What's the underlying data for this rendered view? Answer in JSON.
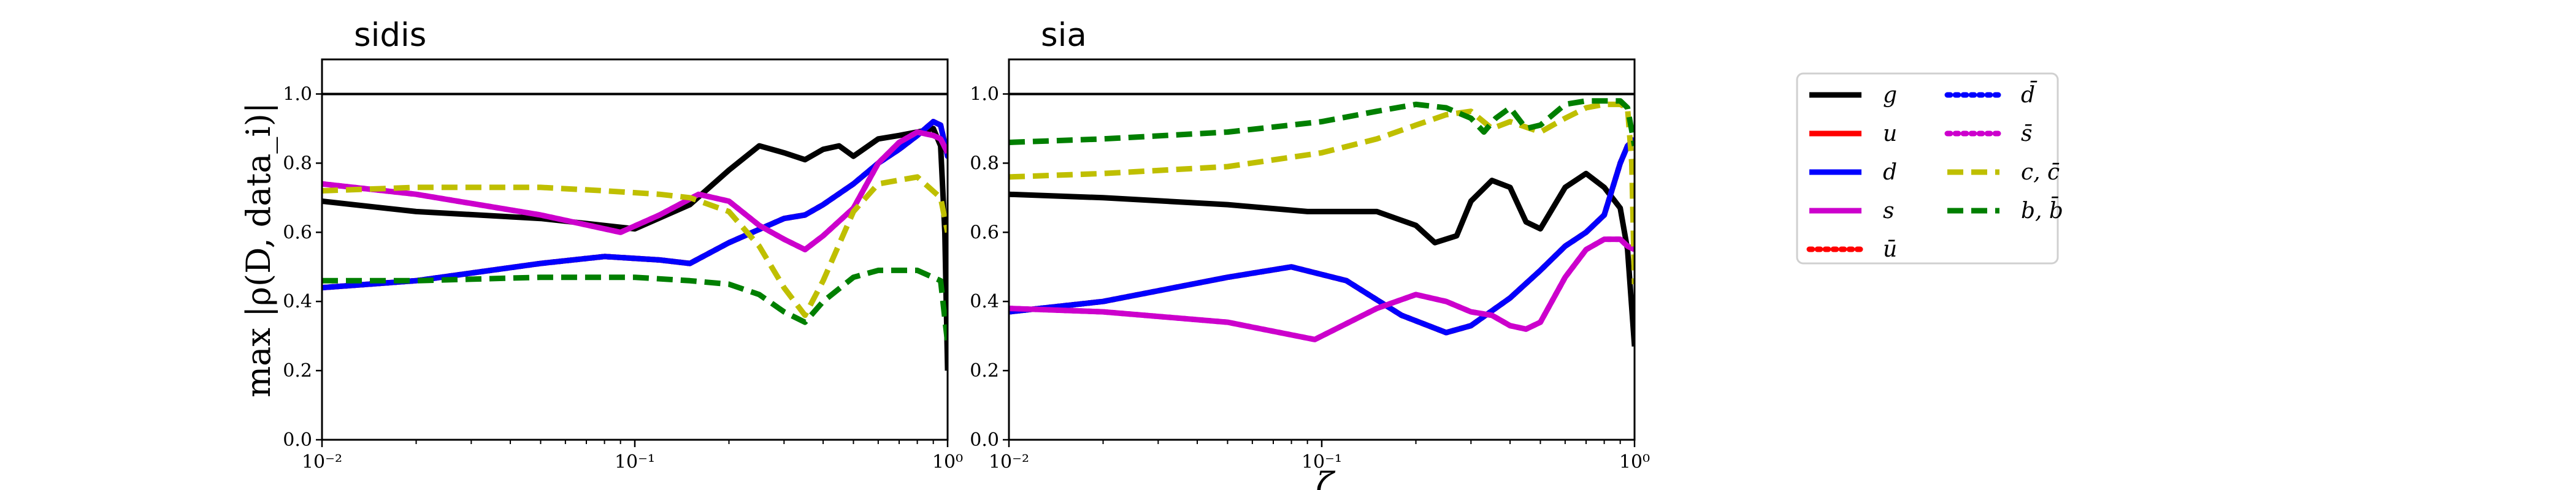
{
  "chart_data": {
    "type": "line",
    "ylabel": "max |ρ(D, data_i)|",
    "xlabel": "ζ",
    "x_scale": "log",
    "xlim": [
      0.01,
      1
    ],
    "ylim": [
      0,
      1.1
    ],
    "x_ticks": [
      {
        "value": 0.01,
        "label": "10⁻²"
      },
      {
        "value": 0.1,
        "label": "10⁻¹"
      },
      {
        "value": 1,
        "label": "10⁰"
      }
    ],
    "y_ticks": [
      {
        "value": 0.0,
        "label": "0.0"
      },
      {
        "value": 0.2,
        "label": "0.2"
      },
      {
        "value": 0.4,
        "label": "0.4"
      },
      {
        "value": 0.6,
        "label": "0.6"
      },
      {
        "value": 0.8,
        "label": "0.8"
      },
      {
        "value": 1.0,
        "label": "1.0"
      }
    ],
    "reference_line": 1.0,
    "legend": {
      "placement": "right of panels",
      "entries": [
        {
          "label": "g",
          "color": "#000000",
          "dash": "solid"
        },
        {
          "label": "u",
          "color": "#ff0000",
          "dash": "solid"
        },
        {
          "label": "d",
          "color": "#0000ff",
          "dash": "solid"
        },
        {
          "label": "s",
          "color": "#cc00cc",
          "dash": "solid"
        },
        {
          "label": "ū",
          "color": "#ff0000",
          "dash": "dotted"
        },
        {
          "label": "d̄",
          "color": "#0000ff",
          "dash": "dotted"
        },
        {
          "label": "s̄",
          "color": "#cc00cc",
          "dash": "dotted"
        },
        {
          "label": "c, c̄",
          "color": "#bfbf00",
          "dash": "dashed"
        },
        {
          "label": "b, b̄",
          "color": "#007f00",
          "dash": "dashed"
        }
      ]
    },
    "panels": [
      {
        "title": "sidis",
        "series": [
          {
            "name": "g",
            "color": "#000000",
            "dash": "solid",
            "x": [
              0.01,
              0.02,
              0.05,
              0.1,
              0.15,
              0.2,
              0.25,
              0.3,
              0.35,
              0.4,
              0.45,
              0.5,
              0.6,
              0.7,
              0.8,
              0.9,
              0.95,
              0.98,
              1.0
            ],
            "y": [
              0.69,
              0.66,
              0.64,
              0.61,
              0.68,
              0.78,
              0.85,
              0.83,
              0.81,
              0.84,
              0.85,
              0.82,
              0.87,
              0.88,
              0.89,
              0.9,
              0.85,
              0.6,
              0.2
            ]
          },
          {
            "name": "u",
            "color": "#ff0000",
            "dash": "solid",
            "x": [
              0.01,
              0.02,
              0.05,
              0.08,
              0.12,
              0.15,
              0.2,
              0.3,
              0.35,
              0.4,
              0.5,
              0.6,
              0.7,
              0.8,
              0.9,
              0.95,
              1.0
            ],
            "y": [
              0.44,
              0.46,
              0.51,
              0.53,
              0.52,
              0.51,
              0.57,
              0.64,
              0.65,
              0.68,
              0.74,
              0.8,
              0.84,
              0.88,
              0.92,
              0.91,
              0.82
            ]
          },
          {
            "name": "d",
            "color": "#0000ff",
            "dash": "solid",
            "x": [
              0.01,
              0.02,
              0.05,
              0.08,
              0.12,
              0.15,
              0.2,
              0.3,
              0.35,
              0.4,
              0.5,
              0.6,
              0.7,
              0.8,
              0.9,
              0.95,
              1.0
            ],
            "y": [
              0.44,
              0.46,
              0.51,
              0.53,
              0.52,
              0.51,
              0.57,
              0.64,
              0.65,
              0.68,
              0.74,
              0.8,
              0.84,
              0.88,
              0.92,
              0.91,
              0.82
            ]
          },
          {
            "name": "ū",
            "color": "#ff0000",
            "dash": "dotted",
            "x": [
              0.01,
              0.02,
              0.05,
              0.08,
              0.12,
              0.15,
              0.2,
              0.3,
              0.35,
              0.4,
              0.5,
              0.6,
              0.7,
              0.8,
              0.9,
              0.95,
              1.0
            ],
            "y": [
              0.44,
              0.46,
              0.51,
              0.53,
              0.52,
              0.51,
              0.57,
              0.64,
              0.65,
              0.68,
              0.74,
              0.8,
              0.84,
              0.88,
              0.92,
              0.91,
              0.82
            ]
          },
          {
            "name": "d̄",
            "color": "#0000ff",
            "dash": "dotted",
            "x": [
              0.01,
              0.02,
              0.05,
              0.08,
              0.12,
              0.15,
              0.2,
              0.3,
              0.35,
              0.4,
              0.5,
              0.6,
              0.7,
              0.8,
              0.9,
              0.95,
              1.0
            ],
            "y": [
              0.44,
              0.46,
              0.51,
              0.53,
              0.52,
              0.51,
              0.57,
              0.64,
              0.65,
              0.68,
              0.74,
              0.8,
              0.84,
              0.88,
              0.92,
              0.91,
              0.82
            ]
          },
          {
            "name": "s",
            "color": "#cc00cc",
            "dash": "solid",
            "x": [
              0.01,
              0.02,
              0.05,
              0.09,
              0.12,
              0.16,
              0.2,
              0.25,
              0.3,
              0.35,
              0.4,
              0.5,
              0.6,
              0.7,
              0.8,
              0.9,
              0.95,
              1.0
            ],
            "y": [
              0.74,
              0.71,
              0.65,
              0.6,
              0.65,
              0.71,
              0.69,
              0.62,
              0.58,
              0.55,
              0.59,
              0.67,
              0.8,
              0.86,
              0.89,
              0.88,
              0.87,
              0.83
            ]
          },
          {
            "name": "s̄",
            "color": "#cc00cc",
            "dash": "dotted",
            "x": [
              0.01,
              0.02,
              0.05,
              0.09,
              0.12,
              0.16,
              0.2,
              0.25,
              0.3,
              0.35,
              0.4,
              0.5,
              0.6,
              0.7,
              0.8,
              0.9,
              0.95,
              1.0
            ],
            "y": [
              0.74,
              0.71,
              0.65,
              0.6,
              0.65,
              0.71,
              0.69,
              0.62,
              0.58,
              0.55,
              0.59,
              0.67,
              0.8,
              0.86,
              0.89,
              0.88,
              0.87,
              0.83
            ]
          },
          {
            "name": "c, c̄",
            "color": "#bfbf00",
            "dash": "dashed",
            "x": [
              0.01,
              0.02,
              0.05,
              0.08,
              0.12,
              0.15,
              0.2,
              0.25,
              0.3,
              0.35,
              0.4,
              0.5,
              0.6,
              0.8,
              0.95,
              1.0
            ],
            "y": [
              0.72,
              0.73,
              0.73,
              0.72,
              0.71,
              0.7,
              0.66,
              0.56,
              0.44,
              0.36,
              0.46,
              0.66,
              0.74,
              0.76,
              0.7,
              0.6
            ]
          },
          {
            "name": "b, b̄",
            "color": "#007f00",
            "dash": "dashed",
            "x": [
              0.01,
              0.02,
              0.05,
              0.1,
              0.15,
              0.2,
              0.25,
              0.3,
              0.35,
              0.4,
              0.5,
              0.6,
              0.8,
              0.95,
              0.98,
              1.0
            ],
            "y": [
              0.46,
              0.46,
              0.47,
              0.47,
              0.46,
              0.45,
              0.42,
              0.37,
              0.34,
              0.4,
              0.47,
              0.49,
              0.49,
              0.46,
              0.35,
              0.28
            ]
          }
        ]
      },
      {
        "title": "sia",
        "series": [
          {
            "name": "g",
            "color": "#000000",
            "dash": "solid",
            "x": [
              0.01,
              0.02,
              0.05,
              0.09,
              0.15,
              0.2,
              0.23,
              0.27,
              0.3,
              0.35,
              0.4,
              0.45,
              0.5,
              0.6,
              0.7,
              0.8,
              0.9,
              0.95,
              1.0
            ],
            "y": [
              0.71,
              0.7,
              0.68,
              0.66,
              0.66,
              0.62,
              0.57,
              0.59,
              0.69,
              0.75,
              0.73,
              0.63,
              0.61,
              0.73,
              0.77,
              0.73,
              0.67,
              0.55,
              0.27
            ]
          },
          {
            "name": "u",
            "color": "#ff0000",
            "dash": "solid",
            "x": [
              0.01,
              0.02,
              0.05,
              0.08,
              0.12,
              0.18,
              0.25,
              0.3,
              0.4,
              0.5,
              0.6,
              0.7,
              0.8,
              0.9,
              0.95,
              1.0
            ],
            "y": [
              0.37,
              0.4,
              0.47,
              0.5,
              0.46,
              0.36,
              0.31,
              0.33,
              0.41,
              0.49,
              0.56,
              0.6,
              0.65,
              0.8,
              0.85,
              0.87
            ]
          },
          {
            "name": "d",
            "color": "#0000ff",
            "dash": "solid",
            "x": [
              0.01,
              0.02,
              0.05,
              0.08,
              0.12,
              0.18,
              0.25,
              0.3,
              0.4,
              0.5,
              0.6,
              0.7,
              0.8,
              0.9,
              0.95,
              1.0
            ],
            "y": [
              0.37,
              0.4,
              0.47,
              0.5,
              0.46,
              0.36,
              0.31,
              0.33,
              0.41,
              0.49,
              0.56,
              0.6,
              0.65,
              0.8,
              0.85,
              0.87
            ]
          },
          {
            "name": "ū",
            "color": "#ff0000",
            "dash": "dotted",
            "x": [
              0.01,
              0.02,
              0.05,
              0.08,
              0.12,
              0.18,
              0.25,
              0.3,
              0.4,
              0.5,
              0.6,
              0.7,
              0.8,
              0.9,
              0.95,
              1.0
            ],
            "y": [
              0.37,
              0.4,
              0.47,
              0.5,
              0.46,
              0.36,
              0.31,
              0.33,
              0.41,
              0.49,
              0.56,
              0.6,
              0.65,
              0.8,
              0.85,
              0.87
            ]
          },
          {
            "name": "d̄",
            "color": "#0000ff",
            "dash": "dotted",
            "x": [
              0.01,
              0.02,
              0.05,
              0.08,
              0.12,
              0.18,
              0.25,
              0.3,
              0.4,
              0.5,
              0.6,
              0.7,
              0.8,
              0.9,
              0.95,
              1.0
            ],
            "y": [
              0.37,
              0.4,
              0.47,
              0.5,
              0.46,
              0.36,
              0.31,
              0.33,
              0.41,
              0.49,
              0.56,
              0.6,
              0.65,
              0.8,
              0.85,
              0.87
            ]
          },
          {
            "name": "s",
            "color": "#cc00cc",
            "dash": "solid",
            "x": [
              0.01,
              0.02,
              0.05,
              0.095,
              0.15,
              0.2,
              0.25,
              0.3,
              0.35,
              0.4,
              0.45,
              0.5,
              0.6,
              0.7,
              0.8,
              0.9,
              0.95,
              1.0
            ],
            "y": [
              0.38,
              0.37,
              0.34,
              0.29,
              0.38,
              0.42,
              0.4,
              0.37,
              0.36,
              0.33,
              0.32,
              0.34,
              0.47,
              0.55,
              0.58,
              0.58,
              0.56,
              0.55
            ]
          },
          {
            "name": "s̄",
            "color": "#cc00cc",
            "dash": "dotted",
            "x": [
              0.01,
              0.02,
              0.05,
              0.095,
              0.15,
              0.2,
              0.25,
              0.3,
              0.35,
              0.4,
              0.45,
              0.5,
              0.6,
              0.7,
              0.8,
              0.9,
              0.95,
              1.0
            ],
            "y": [
              0.38,
              0.37,
              0.34,
              0.29,
              0.38,
              0.42,
              0.4,
              0.37,
              0.36,
              0.33,
              0.32,
              0.34,
              0.47,
              0.55,
              0.58,
              0.58,
              0.56,
              0.55
            ]
          },
          {
            "name": "c, c̄",
            "color": "#bfbf00",
            "dash": "dashed",
            "x": [
              0.01,
              0.02,
              0.05,
              0.1,
              0.15,
              0.2,
              0.25,
              0.3,
              0.35,
              0.4,
              0.5,
              0.6,
              0.7,
              0.8,
              0.9,
              0.95,
              0.98,
              1.0
            ],
            "y": [
              0.76,
              0.77,
              0.79,
              0.83,
              0.87,
              0.91,
              0.94,
              0.95,
              0.9,
              0.92,
              0.89,
              0.93,
              0.96,
              0.97,
              0.97,
              0.96,
              0.8,
              0.45
            ]
          },
          {
            "name": "b, b̄",
            "color": "#007f00",
            "dash": "dashed",
            "x": [
              0.01,
              0.02,
              0.05,
              0.1,
              0.15,
              0.2,
              0.25,
              0.3,
              0.33,
              0.36,
              0.4,
              0.45,
              0.5,
              0.6,
              0.7,
              0.8,
              0.9,
              0.95,
              1.0
            ],
            "y": [
              0.86,
              0.87,
              0.89,
              0.92,
              0.95,
              0.97,
              0.96,
              0.93,
              0.89,
              0.93,
              0.96,
              0.9,
              0.91,
              0.97,
              0.98,
              0.98,
              0.98,
              0.96,
              0.85
            ]
          }
        ]
      }
    ]
  }
}
